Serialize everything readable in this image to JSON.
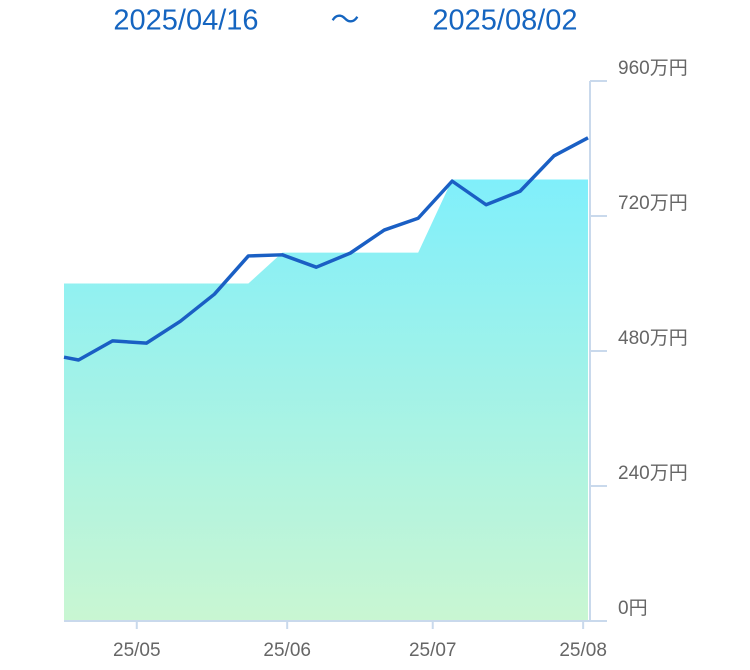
{
  "header": {
    "start": "2025/04/16",
    "separator": "〜",
    "end": "2025/08/02"
  },
  "chart_data": {
    "type": "line",
    "x": [
      0,
      3,
      10,
      17,
      24,
      31,
      38,
      45,
      52,
      59,
      66,
      73,
      80,
      87,
      94,
      101,
      108
    ],
    "xlim": [
      0,
      108
    ],
    "xticks": [
      {
        "value": 15,
        "label": "25/05"
      },
      {
        "value": 46,
        "label": "25/06"
      },
      {
        "value": 76,
        "label": "25/07"
      },
      {
        "value": 107,
        "label": "25/08"
      }
    ],
    "ylim": [
      0,
      960
    ],
    "yticks": [
      {
        "value": 0,
        "label": "0円"
      },
      {
        "value": 240,
        "label": "240万円"
      },
      {
        "value": 480,
        "label": "480万円"
      },
      {
        "value": 720,
        "label": "720万円"
      },
      {
        "value": 960,
        "label": "960万円"
      }
    ],
    "series": [
      {
        "style": "area",
        "color": "#80effb",
        "color2": "#c9f6d2",
        "values": [
          600,
          600,
          600,
          600,
          600,
          600,
          600,
          655,
          655,
          655,
          655,
          655,
          785,
          785,
          785,
          785,
          785
        ]
      },
      {
        "style": "line",
        "color": "#1a5fc4",
        "values": [
          469,
          464,
          498,
          494,
          533,
          581,
          649,
          651,
          629,
          654,
          695,
          716,
          782,
          740,
          764,
          827,
          859
        ]
      }
    ]
  }
}
